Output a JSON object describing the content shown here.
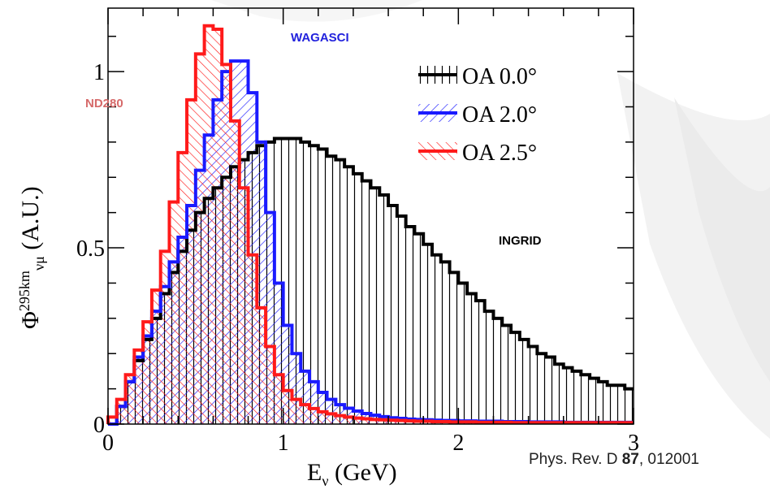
{
  "chart_data": {
    "type": "histogram",
    "x": {
      "label": "E",
      "label_sub": "ν",
      "label_unit": "(GeV)",
      "lim": [
        0,
        3
      ],
      "ticks": [
        0,
        1,
        2,
        3
      ],
      "tick_labels": [
        "0",
        "1",
        "2",
        "3"
      ]
    },
    "y": {
      "label_symbol": "Φ",
      "label_sup": "295km",
      "label_sub": "ν",
      "label_subsub": "μ",
      "label_unit": "(A.U.)",
      "lim": [
        0,
        1.18
      ],
      "ticks": [
        0,
        0.5,
        1
      ],
      "tick_labels": [
        "0",
        "0.5",
        "1"
      ]
    },
    "bin_width": 0.05,
    "series": [
      {
        "name": "OA 0.0°",
        "color": "#000000",
        "hatch": "vertical",
        "values": [
          0,
          0.05,
          0.12,
          0.18,
          0.24,
          0.3,
          0.37,
          0.43,
          0.49,
          0.55,
          0.6,
          0.64,
          0.67,
          0.7,
          0.73,
          0.75,
          0.77,
          0.79,
          0.8,
          0.81,
          0.81,
          0.81,
          0.8,
          0.79,
          0.78,
          0.76,
          0.75,
          0.73,
          0.71,
          0.69,
          0.67,
          0.65,
          0.62,
          0.59,
          0.56,
          0.54,
          0.51,
          0.48,
          0.46,
          0.43,
          0.4,
          0.37,
          0.35,
          0.32,
          0.3,
          0.28,
          0.26,
          0.24,
          0.22,
          0.2,
          0.19,
          0.17,
          0.16,
          0.15,
          0.14,
          0.13,
          0.12,
          0.11,
          0.11,
          0.1
        ]
      },
      {
        "name": "OA 2.0°",
        "color": "#1a1aff",
        "hatch": "diagonal",
        "values": [
          0,
          0.05,
          0.12,
          0.19,
          0.25,
          0.32,
          0.39,
          0.46,
          0.53,
          0.62,
          0.72,
          0.82,
          0.92,
          1.0,
          1.03,
          1.03,
          0.94,
          0.8,
          0.6,
          0.4,
          0.28,
          0.2,
          0.15,
          0.12,
          0.09,
          0.07,
          0.055,
          0.045,
          0.037,
          0.03,
          0.025,
          0.021,
          0.018,
          0.016,
          0.014,
          0.013,
          0.012,
          0.011,
          0.01,
          0.01,
          0.009,
          0.009,
          0.008,
          0.008,
          0.008,
          0.007,
          0.007,
          0.007,
          0.006,
          0.006,
          0.006,
          0.006,
          0.005,
          0.005,
          0.005,
          0.005,
          0.005,
          0.005,
          0.005,
          0.005
        ]
      },
      {
        "name": "OA 2.5°",
        "color": "#ff1a1a",
        "hatch": "diagonal-reverse",
        "values": [
          0.02,
          0.07,
          0.14,
          0.21,
          0.29,
          0.38,
          0.49,
          0.63,
          0.77,
          0.92,
          1.05,
          1.13,
          1.12,
          1.02,
          0.86,
          0.67,
          0.48,
          0.33,
          0.22,
          0.14,
          0.095,
          0.07,
          0.055,
          0.044,
          0.035,
          0.029,
          0.024,
          0.02,
          0.017,
          0.015,
          0.013,
          0.012,
          0.011,
          0.01,
          0.009,
          0.008,
          0.008,
          0.007,
          0.007,
          0.006,
          0.006,
          0.006,
          0.005,
          0.005,
          0.005,
          0.005,
          0.004,
          0.004,
          0.004,
          0.004,
          0.004,
          0.004,
          0.004,
          0.004,
          0.004,
          0.004,
          0.004,
          0.004,
          0.004,
          0.004
        ]
      }
    ],
    "legend": {
      "placement": "top-right",
      "entries": [
        "OA 0.0°",
        "OA 2.0°",
        "OA 2.5°"
      ]
    },
    "annotations": [
      {
        "text": "WAGASCI",
        "color": "#2222dd"
      },
      {
        "text": "ND280",
        "color": "#d66a6a"
      },
      {
        "text": "INGRID",
        "color": "#000000"
      }
    ]
  },
  "citation": {
    "prefix": "Phys. Rev. D ",
    "volume": "87",
    "suffix": ", 012001"
  }
}
